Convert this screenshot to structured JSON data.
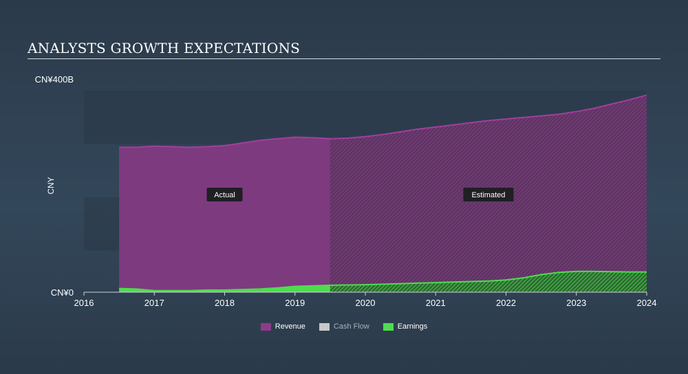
{
  "header": {
    "title": "ANALYSTS GROWTH EXPECTATIONS"
  },
  "chart_data": {
    "type": "area",
    "title": "ANALYSTS GROWTH EXPECTATIONS",
    "ylabel": "CNY",
    "ylim": [
      0,
      400
    ],
    "y_unit": "CNY billions",
    "y_ticks": [
      {
        "value": 400,
        "label": "CN¥400B"
      },
      {
        "value": 0,
        "label": "CN¥0"
      }
    ],
    "xlim": [
      2016,
      2024.0
    ],
    "x_ticks": [
      "2016",
      "2017",
      "2018",
      "2019",
      "2020",
      "2021",
      "2022",
      "2023",
      "2024"
    ],
    "actual_end": 2019.5,
    "annotations": {
      "actual": "Actual",
      "estimated": "Estimated"
    },
    "colors": {
      "revenue": "#8e3a8a",
      "cashflow": "#c8c8c8",
      "earnings": "#4fdc4f",
      "band": "#2a3947"
    },
    "legend": [
      {
        "key": "revenue",
        "label": "Revenue"
      },
      {
        "key": "cashflow",
        "label": "Cash Flow"
      },
      {
        "key": "earnings",
        "label": "Earnings"
      }
    ],
    "series": [
      {
        "name": "Revenue",
        "x": [
          2016.5,
          2016.75,
          2017.0,
          2017.25,
          2017.5,
          2017.75,
          2018.0,
          2018.25,
          2018.5,
          2018.75,
          2019.0,
          2019.25,
          2019.5,
          2019.75,
          2020.0,
          2020.25,
          2020.5,
          2020.75,
          2021.0,
          2021.25,
          2021.5,
          2021.75,
          2022.0,
          2022.25,
          2022.5,
          2022.75,
          2023.0,
          2023.25,
          2023.5,
          2023.75,
          2024.0
        ],
        "values": [
          272,
          272,
          274,
          273,
          272,
          273,
          275,
          280,
          285,
          288,
          291,
          290,
          288,
          289,
          292,
          296,
          301,
          306,
          310,
          314,
          318,
          322,
          325,
          328,
          331,
          334,
          339,
          345,
          353,
          361,
          370
        ]
      },
      {
        "name": "Earnings",
        "x": [
          2016.5,
          2016.75,
          2017.0,
          2017.25,
          2017.5,
          2017.75,
          2018.0,
          2018.25,
          2018.5,
          2018.75,
          2019.0,
          2019.25,
          2019.5,
          2019.75,
          2020.0,
          2020.25,
          2020.5,
          2020.75,
          2021.0,
          2021.25,
          2021.5,
          2021.75,
          2022.0,
          2022.25,
          2022.5,
          2022.75,
          2023.0,
          2023.25,
          2023.5,
          2023.75,
          2024.0
        ],
        "values": [
          7,
          6,
          3,
          3,
          3,
          4,
          4,
          5,
          6,
          8,
          11,
          12,
          13,
          13.5,
          14,
          15,
          16,
          17,
          18,
          19,
          20,
          21,
          23,
          27,
          33,
          37,
          39,
          39,
          38.5,
          38,
          38
        ]
      }
    ]
  }
}
